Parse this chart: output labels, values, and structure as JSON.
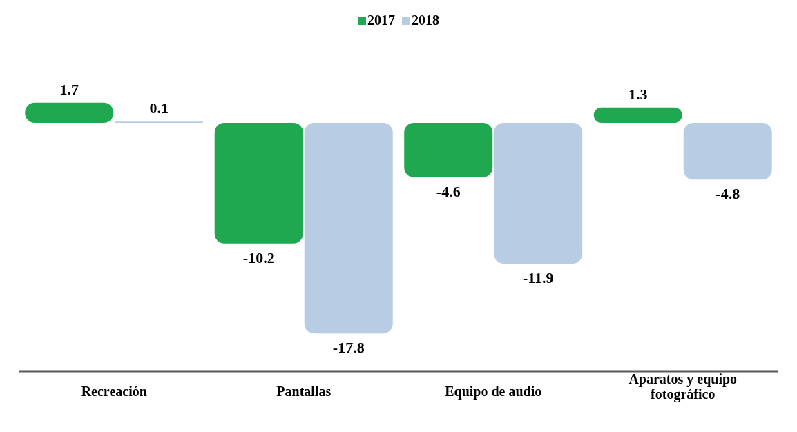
{
  "chart_data": {
    "type": "bar",
    "categories": [
      "Recreación",
      "Pantallas",
      "Equipo de audio",
      "Aparatos y equipo fotográfico"
    ],
    "series": [
      {
        "name": "2017",
        "color": "#1fa84f",
        "values": [
          1.7,
          -10.2,
          -4.6,
          1.3
        ]
      },
      {
        "name": "2018",
        "color": "#b8cce4",
        "values": [
          0.1,
          -17.8,
          -11.9,
          -4.8
        ]
      }
    ],
    "legend": "top",
    "data_labels": true
  }
}
